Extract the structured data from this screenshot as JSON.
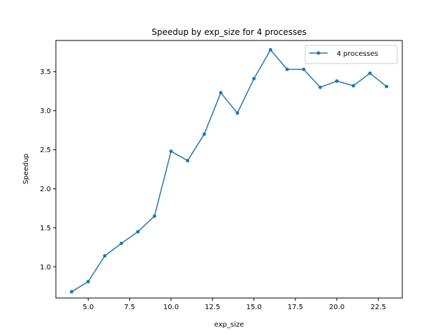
{
  "chart_data": {
    "type": "line",
    "title": "Speedup by exp_size for 4 processes",
    "xlabel": "exp_size",
    "ylabel": "Speedup",
    "xlim": [
      3.05,
      23.95
    ],
    "ylim": [
      0.6,
      3.9
    ],
    "xticks": [
      5.0,
      7.5,
      10.0,
      12.5,
      15.0,
      17.5,
      20.0,
      22.5
    ],
    "xtick_labels": [
      "5.0",
      "7.5",
      "10.0",
      "12.5",
      "15.0",
      "17.5",
      "20.0",
      "22.5"
    ],
    "yticks": [
      1.0,
      1.5,
      2.0,
      2.5,
      3.0,
      3.5
    ],
    "ytick_labels": [
      "1.0",
      "1.5",
      "2.0",
      "2.5",
      "3.0",
      "3.5"
    ],
    "grid": false,
    "legend_position": "top-right",
    "series": [
      {
        "name": "4 processes",
        "color": "#1f77b4",
        "marker": "circle",
        "x": [
          4,
          5,
          6,
          7,
          8,
          9,
          10,
          11,
          12,
          13,
          14,
          15,
          16,
          17,
          18,
          19,
          20,
          21,
          22,
          23
        ],
        "y": [
          0.68,
          0.81,
          1.14,
          1.3,
          1.45,
          1.65,
          2.48,
          2.36,
          2.7,
          3.23,
          2.97,
          3.41,
          3.78,
          3.53,
          3.53,
          3.3,
          3.38,
          3.32,
          3.48,
          3.31
        ]
      }
    ]
  }
}
